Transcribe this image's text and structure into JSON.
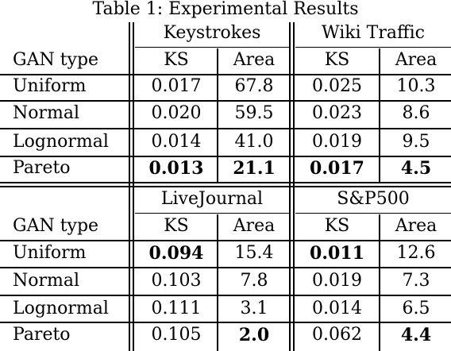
{
  "caption": "Table 1: Experimental Results",
  "panels": [
    {
      "groups": [
        "Keystrokes",
        "Wiki Traffic"
      ],
      "row_header": "GAN type",
      "columns": [
        "KS",
        "Area",
        "KS",
        "Area"
      ],
      "rows": [
        {
          "label": "Uniform",
          "values": [
            "0.017",
            "67.8",
            "0.025",
            "10.3"
          ]
        },
        {
          "label": "Normal",
          "values": [
            "0.020",
            "59.5",
            "0.023",
            "8.6"
          ]
        },
        {
          "label": "Lognormal",
          "values": [
            "0.014",
            "41.0",
            "0.019",
            "9.5"
          ]
        },
        {
          "label": "Pareto",
          "values": [
            "0.013",
            "21.1",
            "0.017",
            "4.5"
          ]
        }
      ]
    },
    {
      "groups": [
        "LiveJournal",
        "S&P500"
      ],
      "row_header": "GAN type",
      "columns": [
        "KS",
        "Area",
        "KS",
        "Area"
      ],
      "rows": [
        {
          "label": "Uniform",
          "values": [
            "0.094",
            "15.4",
            "0.011",
            "12.6"
          ]
        },
        {
          "label": "Normal",
          "values": [
            "0.103",
            "7.8",
            "0.019",
            "7.3"
          ]
        },
        {
          "label": "Lognormal",
          "values": [
            "0.111",
            "3.1",
            "0.014",
            "6.5"
          ]
        },
        {
          "label": "Pareto",
          "values": [
            "0.105",
            "2.0",
            "0.062",
            "4.4"
          ]
        }
      ]
    }
  ]
}
